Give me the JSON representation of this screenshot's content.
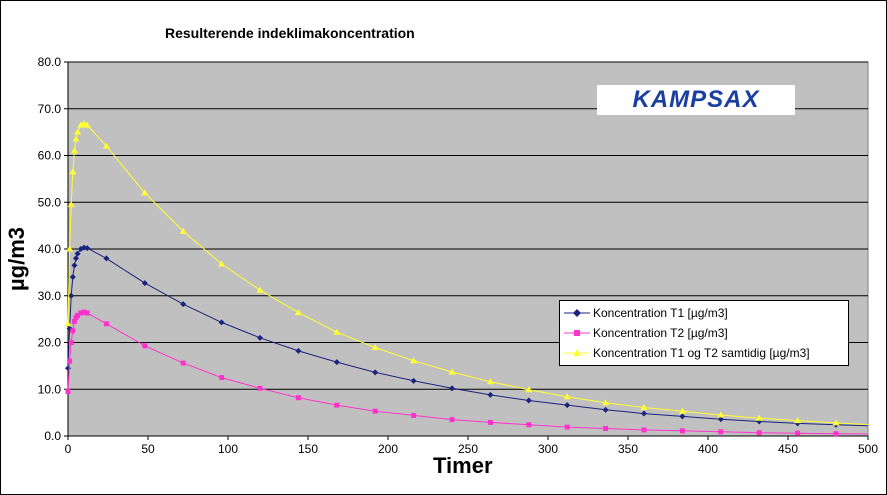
{
  "chart_data": {
    "type": "line",
    "title": "Resulterende indeklimakoncentration",
    "xlabel": "Timer",
    "ylabel": "µg/m3",
    "xlim": [
      0,
      500
    ],
    "ylim": [
      0,
      80
    ],
    "x_ticks": [
      "0",
      "50",
      "100",
      "150",
      "200",
      "250",
      "300",
      "350",
      "400",
      "450",
      "500"
    ],
    "y_ticks": [
      "0.0",
      "10.0",
      "20.0",
      "30.0",
      "40.0",
      "50.0",
      "60.0",
      "70.0",
      "80.0"
    ],
    "grid": "horizontal",
    "legend_position": "lower-right",
    "logo_text": "KAMPSAX",
    "series": [
      {
        "name": "Koncentration T1 [µg/m3]",
        "color": "#1a237e",
        "marker": "diamond",
        "x": [
          0,
          1,
          2,
          3,
          4,
          5,
          6,
          8,
          10,
          12,
          24,
          48,
          72,
          96,
          120,
          144,
          168,
          192,
          216,
          240,
          264,
          288,
          312,
          336,
          360,
          384,
          408,
          432,
          456,
          480
        ],
        "y": [
          14.5,
          23.0,
          30.0,
          34.0,
          36.5,
          38.0,
          39.0,
          40.0,
          40.3,
          40.2,
          38.0,
          32.7,
          28.2,
          24.3,
          21.0,
          18.2,
          15.8,
          13.6,
          11.8,
          10.2,
          8.8,
          7.6,
          6.6,
          5.6,
          4.8,
          4.2,
          3.6,
          3.1,
          2.7,
          2.4
        ]
      },
      {
        "name": "Koncentration T2 [µg/m3]",
        "color": "#ff33cc",
        "marker": "square",
        "x": [
          0,
          1,
          2,
          3,
          4,
          5,
          6,
          8,
          10,
          12,
          24,
          48,
          72,
          96,
          120,
          144,
          168,
          192,
          216,
          240,
          264,
          288,
          312,
          336,
          360,
          384,
          408,
          432,
          456,
          480
        ],
        "y": [
          9.5,
          16.0,
          20.0,
          22.5,
          24.5,
          25.3,
          25.8,
          26.3,
          26.5,
          26.3,
          24.0,
          19.3,
          15.6,
          12.5,
          10.2,
          8.2,
          6.6,
          5.3,
          4.4,
          3.5,
          2.9,
          2.4,
          1.9,
          1.6,
          1.3,
          1.1,
          0.9,
          0.7,
          0.6,
          0.5
        ]
      },
      {
        "name": "Koncentration T1 og T2 samtidig [µg/m3]",
        "color": "#ffff33",
        "marker": "triangle",
        "x": [
          0,
          1,
          2,
          3,
          4,
          5,
          6,
          8,
          10,
          12,
          24,
          48,
          72,
          96,
          120,
          144,
          168,
          192,
          216,
          240,
          264,
          288,
          312,
          336,
          360,
          384,
          408,
          432,
          456,
          480
        ],
        "y": [
          24.0,
          40.0,
          49.5,
          56.5,
          61.0,
          63.5,
          65.0,
          66.5,
          66.8,
          66.5,
          62.0,
          52.0,
          43.8,
          36.8,
          31.2,
          26.4,
          22.2,
          18.9,
          16.1,
          13.7,
          11.6,
          9.9,
          8.4,
          7.1,
          6.1,
          5.3,
          4.5,
          3.8,
          3.3,
          2.8
        ]
      }
    ]
  }
}
